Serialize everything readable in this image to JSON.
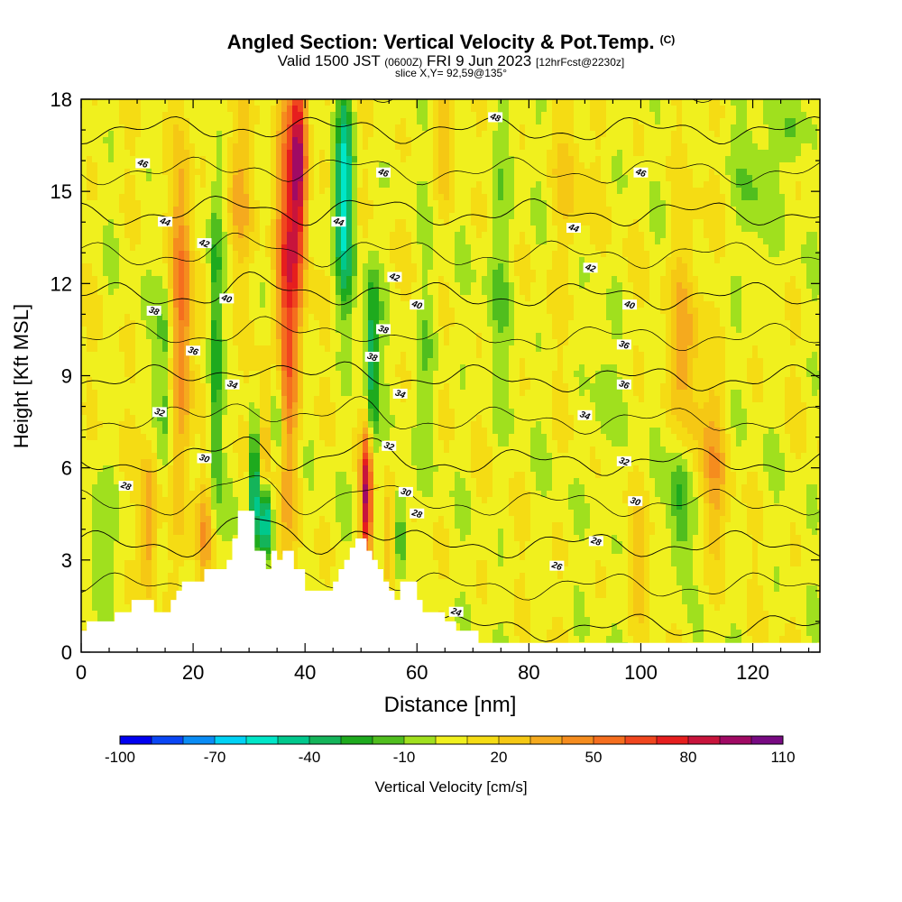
{
  "header": {
    "title": "Angled Section: Vertical Velocity & Pot.Temp.",
    "title_tag": "(C)",
    "valid_prefix": "Valid 1500 JST",
    "valid_utc": "(0600Z)",
    "valid_date": "FRI 9 Jun 2023",
    "forecast": "[12hrFcst@2230z]",
    "slice": "slice X,Y= 92,59@135°"
  },
  "chart_data": {
    "type": "heatmap",
    "xlabel": "Distance [nm]",
    "ylabel": "Height [Kft MSL]",
    "xlim": [
      0,
      132
    ],
    "ylim": [
      0,
      18
    ],
    "x_ticks": [
      0,
      20,
      40,
      60,
      80,
      100,
      120
    ],
    "y_ticks": [
      0,
      3,
      6,
      9,
      12,
      15,
      18
    ],
    "grid": false,
    "colorbar": {
      "label": "Vertical Velocity [cm/s]",
      "tick_labels": [
        "-100",
        "-70",
        "-40",
        "-10",
        "20",
        "50",
        "80",
        "110"
      ],
      "levels": [
        -100,
        -90,
        -80,
        -70,
        -60,
        -50,
        -40,
        -30,
        -20,
        -10,
        0,
        10,
        20,
        30,
        40,
        50,
        60,
        70,
        80,
        90,
        100,
        110
      ],
      "colors": [
        "#0000f0",
        "#0a46f5",
        "#0a8cf5",
        "#00d2f5",
        "#00e6c8",
        "#00c88c",
        "#14b45a",
        "#1eaa1e",
        "#50be1e",
        "#a0e01e",
        "#f0f01e",
        "#f5dc14",
        "#f5c814",
        "#f5aa1e",
        "#f58c1e",
        "#f56e1e",
        "#f0461e",
        "#e61e1e",
        "#c8143c",
        "#a00a64",
        "#780a82"
      ]
    },
    "contour_series": {
      "name": "Potential Temperature (C)",
      "levels": [
        24,
        26,
        28,
        30,
        32,
        34,
        36,
        38,
        40,
        42,
        44,
        46,
        48
      ],
      "label_positions_nm_kft": [
        {
          "label": "48",
          "x": 74,
          "y": 17.4
        },
        {
          "label": "46",
          "x": 11,
          "y": 15.9
        },
        {
          "label": "46",
          "x": 54,
          "y": 15.6
        },
        {
          "label": "46",
          "x": 100,
          "y": 15.6
        },
        {
          "label": "44",
          "x": 15,
          "y": 14.0
        },
        {
          "label": "44",
          "x": 46,
          "y": 14.0
        },
        {
          "label": "44",
          "x": 88,
          "y": 13.8
        },
        {
          "label": "42",
          "x": 22,
          "y": 13.3
        },
        {
          "label": "42",
          "x": 56,
          "y": 12.2
        },
        {
          "label": "42",
          "x": 91,
          "y": 12.5
        },
        {
          "label": "40",
          "x": 26,
          "y": 11.5
        },
        {
          "label": "40",
          "x": 60,
          "y": 11.3
        },
        {
          "label": "40",
          "x": 98,
          "y": 11.3
        },
        {
          "label": "38",
          "x": 13,
          "y": 11.1
        },
        {
          "label": "38",
          "x": 54,
          "y": 10.5
        },
        {
          "label": "38",
          "x": 52,
          "y": 9.6
        },
        {
          "label": "36",
          "x": 20,
          "y": 9.8
        },
        {
          "label": "36",
          "x": 97,
          "y": 10.0
        },
        {
          "label": "36",
          "x": 97,
          "y": 8.7
        },
        {
          "label": "34",
          "x": 27,
          "y": 8.7
        },
        {
          "label": "34",
          "x": 57,
          "y": 8.4
        },
        {
          "label": "34",
          "x": 90,
          "y": 7.7
        },
        {
          "label": "32",
          "x": 14,
          "y": 7.8
        },
        {
          "label": "32",
          "x": 55,
          "y": 6.7
        },
        {
          "label": "32",
          "x": 97,
          "y": 6.2
        },
        {
          "label": "30",
          "x": 22,
          "y": 6.3
        },
        {
          "label": "30",
          "x": 58,
          "y": 5.2
        },
        {
          "label": "30",
          "x": 99,
          "y": 4.9
        },
        {
          "label": "28",
          "x": 8,
          "y": 5.4
        },
        {
          "label": "28",
          "x": 60,
          "y": 4.5
        },
        {
          "label": "28",
          "x": 92,
          "y": 3.6
        },
        {
          "label": "26",
          "x": 85,
          "y": 2.8
        },
        {
          "label": "24",
          "x": 67,
          "y": 1.3
        }
      ]
    },
    "terrain_profile_nm_kft": [
      [
        0,
        0.7
      ],
      [
        1,
        0.7
      ],
      [
        1,
        1.0
      ],
      [
        6,
        1.0
      ],
      [
        6,
        1.3
      ],
      [
        9,
        1.3
      ],
      [
        9,
        1.7
      ],
      [
        13,
        1.7
      ],
      [
        13,
        1.3
      ],
      [
        16,
        1.3
      ],
      [
        16,
        1.7
      ],
      [
        17,
        1.7
      ],
      [
        17,
        2.0
      ],
      [
        18,
        2.0
      ],
      [
        18,
        2.3
      ],
      [
        22,
        2.3
      ],
      [
        22,
        2.7
      ],
      [
        26,
        2.7
      ],
      [
        26,
        3.0
      ],
      [
        27,
        3.0
      ],
      [
        27,
        3.7
      ],
      [
        28,
        3.7
      ],
      [
        28,
        4.6
      ],
      [
        31,
        4.6
      ],
      [
        31,
        3.3
      ],
      [
        33,
        3.3
      ],
      [
        33,
        2.7
      ],
      [
        34,
        2.7
      ],
      [
        34,
        3.3
      ],
      [
        35,
        3.3
      ],
      [
        35,
        3.0
      ],
      [
        36,
        3.0
      ],
      [
        36,
        3.3
      ],
      [
        38,
        3.3
      ],
      [
        38,
        2.7
      ],
      [
        40,
        2.7
      ],
      [
        40,
        2.0
      ],
      [
        45,
        2.0
      ],
      [
        45,
        2.3
      ],
      [
        46,
        2.3
      ],
      [
        46,
        2.7
      ],
      [
        47,
        2.7
      ],
      [
        47,
        3.0
      ],
      [
        48,
        3.0
      ],
      [
        48,
        3.4
      ],
      [
        49,
        3.4
      ],
      [
        49,
        3.7
      ],
      [
        51,
        3.7
      ],
      [
        51,
        3.3
      ],
      [
        52,
        3.3
      ],
      [
        52,
        3.0
      ],
      [
        53,
        3.0
      ],
      [
        53,
        2.7
      ],
      [
        54,
        2.7
      ],
      [
        54,
        2.3
      ],
      [
        55,
        2.3
      ],
      [
        55,
        2.0
      ],
      [
        56,
        2.0
      ],
      [
        56,
        1.7
      ],
      [
        57,
        1.7
      ],
      [
        57,
        2.3
      ],
      [
        60,
        2.3
      ],
      [
        60,
        1.7
      ],
      [
        61,
        1.7
      ],
      [
        61,
        1.3
      ],
      [
        65,
        1.3
      ],
      [
        65,
        1.0
      ],
      [
        67,
        1.0
      ],
      [
        67,
        0.7
      ],
      [
        71,
        0.7
      ],
      [
        71,
        0.3
      ],
      [
        132,
        0.3
      ]
    ]
  }
}
